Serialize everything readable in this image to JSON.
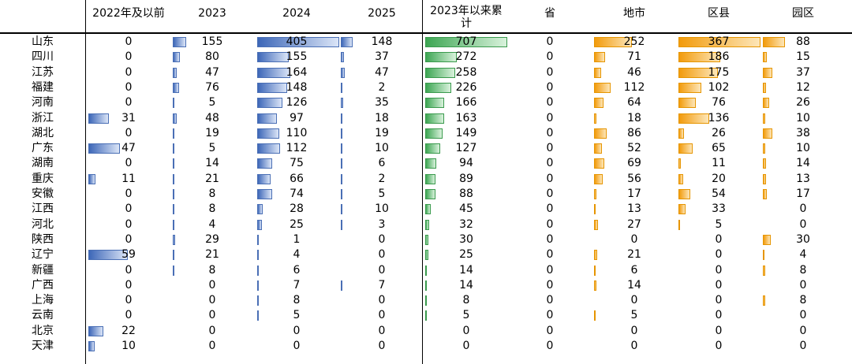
{
  "chart_data": {
    "type": "table",
    "columns": [
      "2022年及以前",
      "2023",
      "2024",
      "2025",
      "2023年以来累计",
      "省",
      "地市",
      "区县",
      "园区"
    ],
    "rows": [
      {
        "region": "山东",
        "values": [
          0,
          155,
          405,
          148,
          707,
          0,
          252,
          367,
          88
        ]
      },
      {
        "region": "四川",
        "values": [
          0,
          80,
          155,
          37,
          272,
          0,
          71,
          186,
          15
        ]
      },
      {
        "region": "江苏",
        "values": [
          0,
          47,
          164,
          47,
          258,
          0,
          46,
          175,
          37
        ]
      },
      {
        "region": "福建",
        "values": [
          0,
          76,
          148,
          2,
          226,
          0,
          112,
          102,
          12
        ]
      },
      {
        "region": "河南",
        "values": [
          0,
          5,
          126,
          35,
          166,
          0,
          64,
          76,
          26
        ]
      },
      {
        "region": "浙江",
        "values": [
          31,
          48,
          97,
          18,
          163,
          0,
          18,
          136,
          10
        ]
      },
      {
        "region": "湖北",
        "values": [
          0,
          19,
          110,
          19,
          149,
          0,
          86,
          26,
          38
        ]
      },
      {
        "region": "广东",
        "values": [
          47,
          5,
          112,
          10,
          127,
          0,
          52,
          65,
          10
        ]
      },
      {
        "region": "湖南",
        "values": [
          0,
          14,
          75,
          6,
          94,
          0,
          69,
          11,
          14
        ]
      },
      {
        "region": "重庆",
        "values": [
          11,
          21,
          66,
          2,
          89,
          0,
          56,
          20,
          13
        ]
      },
      {
        "region": "安徽",
        "values": [
          0,
          8,
          74,
          5,
          88,
          0,
          17,
          54,
          17
        ]
      },
      {
        "region": "江西",
        "values": [
          0,
          8,
          28,
          10,
          45,
          0,
          13,
          33,
          0
        ]
      },
      {
        "region": "河北",
        "values": [
          0,
          4,
          25,
          3,
          32,
          0,
          27,
          5,
          0
        ]
      },
      {
        "region": "陕西",
        "values": [
          0,
          29,
          1,
          0,
          30,
          0,
          0,
          0,
          30
        ]
      },
      {
        "region": "辽宁",
        "values": [
          59,
          21,
          4,
          0,
          25,
          0,
          21,
          0,
          4
        ]
      },
      {
        "region": "新疆",
        "values": [
          0,
          8,
          6,
          0,
          14,
          0,
          6,
          0,
          8
        ]
      },
      {
        "region": "广西",
        "values": [
          0,
          0,
          7,
          7,
          14,
          0,
          14,
          0,
          0
        ]
      },
      {
        "region": "上海",
        "values": [
          0,
          0,
          8,
          0,
          8,
          0,
          0,
          0,
          8
        ]
      },
      {
        "region": "云南",
        "values": [
          0,
          0,
          5,
          0,
          5,
          0,
          5,
          0,
          0
        ]
      },
      {
        "region": "北京",
        "values": [
          22,
          0,
          0,
          0,
          0,
          0,
          0,
          0,
          0
        ]
      },
      {
        "region": "天津",
        "values": [
          10,
          0,
          0,
          0,
          0,
          0,
          0,
          0,
          0
        ]
      }
    ],
    "colors": {
      "blue": "#5b7fc4",
      "green": "#62b86e",
      "orange": "#f5a623"
    }
  }
}
